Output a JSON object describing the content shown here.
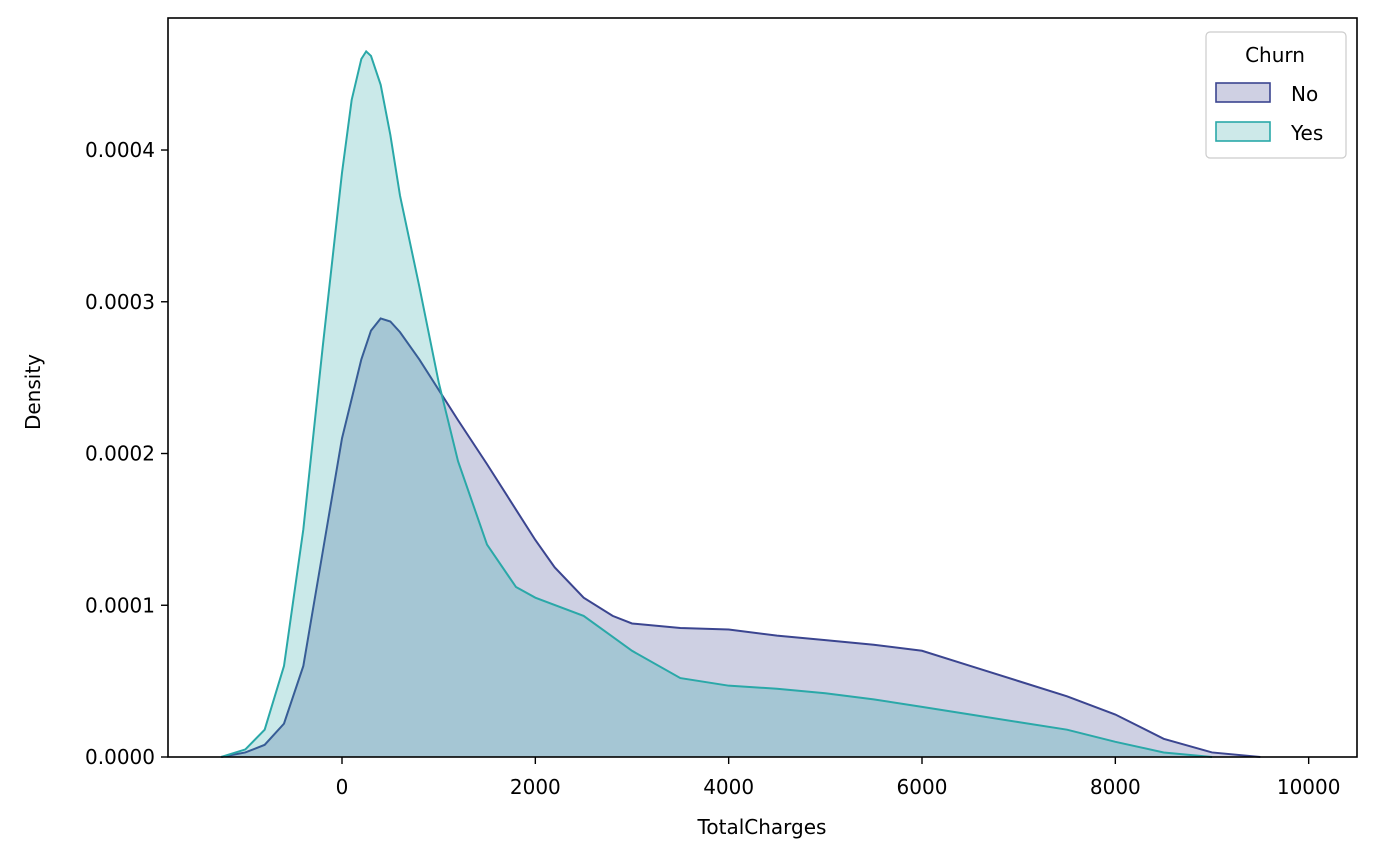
{
  "chart_data": {
    "type": "area",
    "title": "",
    "xlabel": "TotalCharges",
    "ylabel": "Density",
    "xlim": [
      -1800,
      10500
    ],
    "ylim": [
      0,
      0.000487
    ],
    "xticks": [
      0,
      2000,
      4000,
      6000,
      8000,
      10000
    ],
    "xtick_labels": [
      "0",
      "2000",
      "4000",
      "6000",
      "8000",
      "10000"
    ],
    "yticks": [
      0,
      0.0001,
      0.0002,
      0.0003,
      0.0004
    ],
    "ytick_labels": [
      "0.0000",
      "0.0001",
      "0.0002",
      "0.0003",
      "0.0004"
    ],
    "grid": false,
    "legend": {
      "title": "Churn",
      "position": "top-right"
    },
    "series": [
      {
        "name": "No",
        "color": "#3b4590",
        "fill": "#cfd0e3",
        "x": [
          -1250,
          -1000,
          -800,
          -600,
          -400,
          -200,
          0,
          200,
          300,
          400,
          500,
          600,
          800,
          1000,
          1200,
          1500,
          1800,
          2000,
          2200,
          2500,
          2800,
          3000,
          3500,
          4000,
          4500,
          5000,
          5500,
          6000,
          6500,
          7000,
          7500,
          8000,
          8500,
          9000,
          9500
        ],
        "y": [
          0.0,
          3e-06,
          8e-06,
          2.2e-05,
          6e-05,
          0.000135,
          0.00021,
          0.000262,
          0.000281,
          0.000289,
          0.000287,
          0.00028,
          0.000262,
          0.000242,
          0.000222,
          0.000193,
          0.000163,
          0.000143,
          0.000125,
          0.000105,
          9.3e-05,
          8.8e-05,
          8.5e-05,
          8.4e-05,
          8e-05,
          7.7e-05,
          7.4e-05,
          7e-05,
          6e-05,
          5e-05,
          4e-05,
          2.8e-05,
          1.2e-05,
          3e-06,
          0.0
        ]
      },
      {
        "name": "Yes",
        "color": "#2aa8a8",
        "fill": "#cde9e9",
        "x": [
          -1250,
          -1000,
          -800,
          -600,
          -400,
          -200,
          0,
          100,
          200,
          250,
          300,
          400,
          500,
          600,
          800,
          1000,
          1200,
          1500,
          1800,
          2000,
          2500,
          3000,
          3500,
          4000,
          4500,
          5000,
          5500,
          6000,
          6500,
          7000,
          7500,
          8000,
          8500,
          9000
        ],
        "y": [
          0.0,
          5e-06,
          1.8e-05,
          6e-05,
          0.00015,
          0.00027,
          0.000385,
          0.000433,
          0.00046,
          0.000465,
          0.000462,
          0.000443,
          0.00041,
          0.00037,
          0.00031,
          0.000247,
          0.000195,
          0.00014,
          0.000112,
          0.000105,
          9.3e-05,
          7e-05,
          5.2e-05,
          4.7e-05,
          4.5e-05,
          4.2e-05,
          3.8e-05,
          3.3e-05,
          2.8e-05,
          2.3e-05,
          1.8e-05,
          1e-05,
          3e-06,
          0.0
        ]
      }
    ]
  }
}
